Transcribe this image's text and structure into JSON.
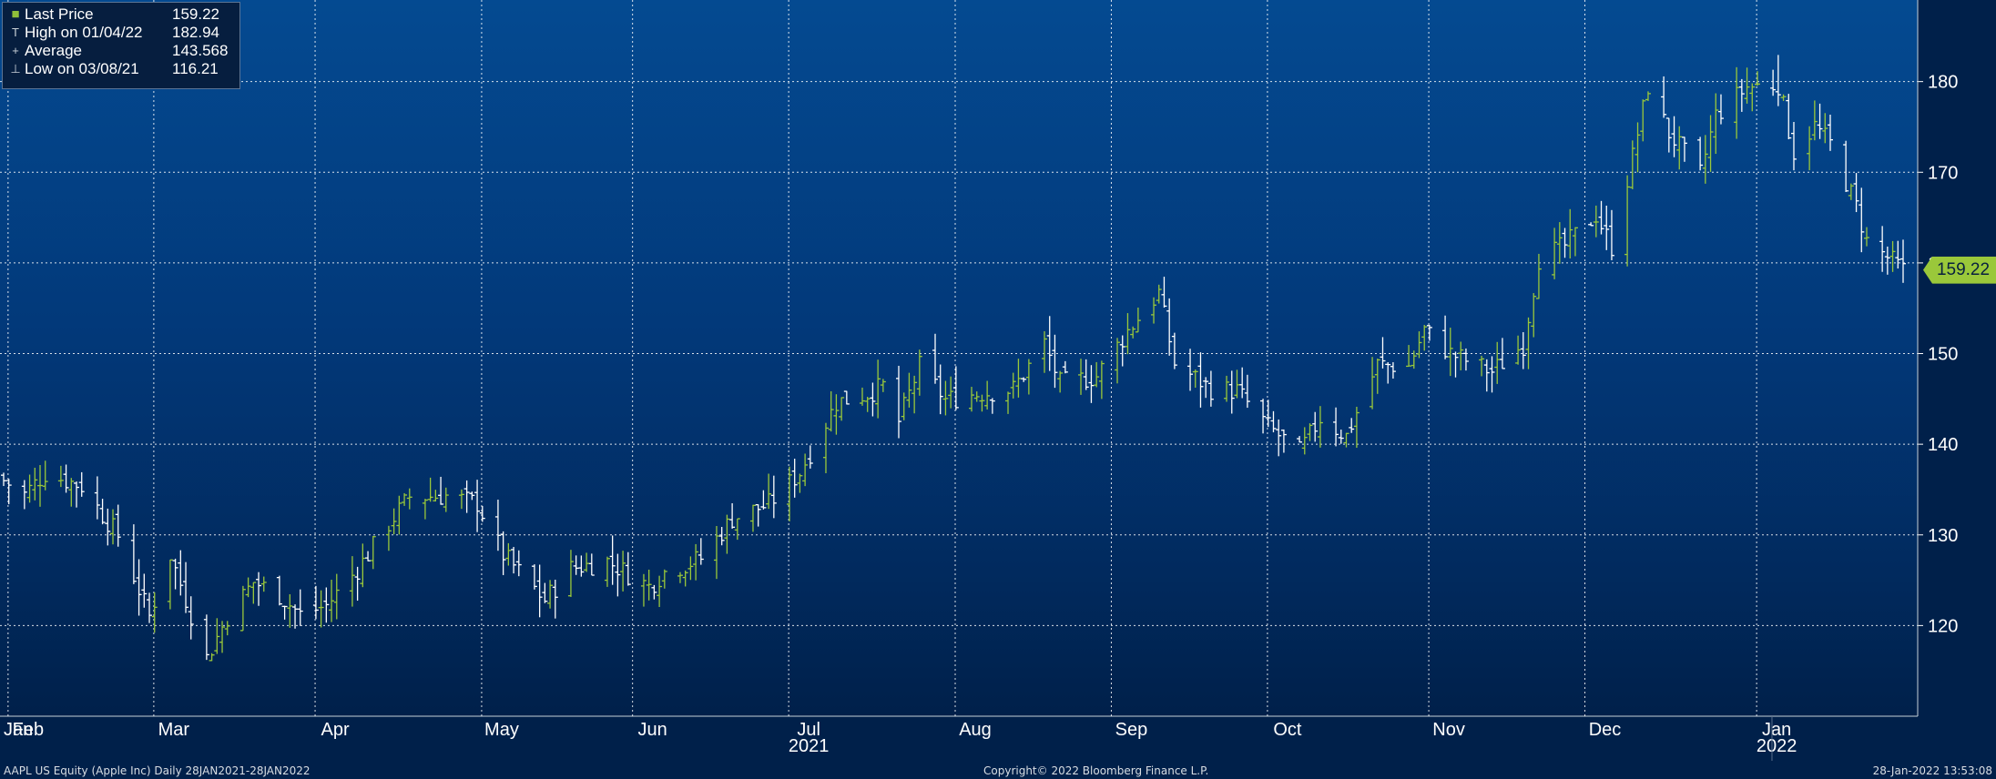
{
  "legend": {
    "items": [
      {
        "symbol": "■",
        "name": "Last Price",
        "value": "159.22"
      },
      {
        "symbol": "T",
        "name": "High on 01/04/22",
        "value": "182.94"
      },
      {
        "symbol": "+",
        "name": "Average",
        "value": "143.568"
      },
      {
        "symbol": "⊥",
        "name": "Low on 03/08/21",
        "value": "116.21"
      }
    ]
  },
  "last_price_label": "159.22",
  "footer": {
    "left": "AAPL US Equity (Apple Inc)  Daily 28JAN2021-28JAN2022",
    "center": "Copyright© 2022 Bloomberg Finance L.P.",
    "right": "28-Jan-2022 13:53:08"
  },
  "colors": {
    "up": "#9ac83a",
    "down": "#ffffff",
    "grid": "#ffffff",
    "last_price_box": "#9ac83a"
  },
  "chart_data": {
    "type": "bar",
    "subtype": "ohlc",
    "title": "",
    "xlabel": "",
    "ylabel": "",
    "ylim": [
      110,
      189
    ],
    "yticks": [
      120,
      130,
      140,
      150,
      160,
      170,
      180
    ],
    "year_labels": [
      {
        "label": "2021",
        "date": "2021-07-01"
      },
      {
        "label": "2022",
        "date": "2022-01-03"
      }
    ],
    "month_ticks": [
      {
        "label": "Jan",
        "date": "2021-01-28"
      },
      {
        "label": "Feb",
        "date": "2021-02-01"
      },
      {
        "label": "Mar",
        "date": "2021-03-01"
      },
      {
        "label": "Apr",
        "date": "2021-04-01"
      },
      {
        "label": "May",
        "date": "2021-05-03"
      },
      {
        "label": "Jun",
        "date": "2021-06-01"
      },
      {
        "label": "Jul",
        "date": "2021-07-01"
      },
      {
        "label": "Aug",
        "date": "2021-08-02"
      },
      {
        "label": "Sep",
        "date": "2021-09-01"
      },
      {
        "label": "Oct",
        "date": "2021-10-01"
      },
      {
        "label": "Nov",
        "date": "2021-11-01"
      },
      {
        "label": "Dec",
        "date": "2021-12-01"
      },
      {
        "label": "Jan",
        "date": "2022-01-03"
      }
    ],
    "last_price": 159.22,
    "high": {
      "date": "01/04/22",
      "value": 182.94
    },
    "low": {
      "date": "03/08/21",
      "value": 116.21
    },
    "average": 143.568,
    "grid": true,
    "legend_position": "top-left",
    "keypoints": [
      [
        "2021-01-28",
        136
      ],
      [
        "2021-02-01",
        134.5
      ],
      [
        "2021-02-05",
        136.8
      ],
      [
        "2021-02-12",
        135.4
      ],
      [
        "2021-02-19",
        129.9
      ],
      [
        "2021-02-25",
        121
      ],
      [
        "2021-03-01",
        127.8
      ],
      [
        "2021-03-08",
        116.4
      ],
      [
        "2021-03-12",
        121
      ],
      [
        "2021-03-17",
        124.8
      ],
      [
        "2021-03-22",
        123.4
      ],
      [
        "2021-03-26",
        121.2
      ],
      [
        "2021-03-31",
        122.2
      ],
      [
        "2021-04-06",
        126.2
      ],
      [
        "2021-04-12",
        131.2
      ],
      [
        "2021-04-16",
        134.2
      ],
      [
        "2021-04-23",
        134.3
      ],
      [
        "2021-04-29",
        133.5
      ],
      [
        "2021-05-04",
        127.8
      ],
      [
        "2021-05-12",
        122.8
      ],
      [
        "2021-05-17",
        126.3
      ],
      [
        "2021-05-24",
        127.1
      ],
      [
        "2021-06-01",
        124.3
      ],
      [
        "2021-06-04",
        125.9
      ],
      [
        "2021-06-11",
        127.4
      ],
      [
        "2021-06-17",
        131.8
      ],
      [
        "2021-06-24",
        133.4
      ],
      [
        "2021-06-30",
        136.9
      ],
      [
        "2021-07-07",
        144.6
      ],
      [
        "2021-07-13",
        145.6
      ],
      [
        "2021-07-16",
        146.4
      ],
      [
        "2021-07-19",
        142.5
      ],
      [
        "2021-07-23",
        148.6
      ],
      [
        "2021-07-28",
        144.9
      ],
      [
        "2021-08-02",
        145.5
      ],
      [
        "2021-08-10",
        146.1
      ],
      [
        "2021-08-16",
        151.1
      ],
      [
        "2021-08-19",
        146.7
      ],
      [
        "2021-08-26",
        147.5
      ],
      [
        "2021-09-01",
        152.5
      ],
      [
        "2021-09-07",
        156.7
      ],
      [
        "2021-09-10",
        148.9
      ],
      [
        "2021-09-17",
        146.1
      ],
      [
        "2021-09-22",
        145.9
      ],
      [
        "2021-09-28",
        141.9
      ],
      [
        "2021-10-04",
        139.1
      ],
      [
        "2021-10-08",
        142.9
      ],
      [
        "2021-10-13",
        140.9
      ],
      [
        "2021-10-19",
        148.8
      ],
      [
        "2021-10-25",
        148.6
      ],
      [
        "2021-10-28",
        152.6
      ],
      [
        "2021-11-02",
        150.0
      ],
      [
        "2021-11-10",
        148.0
      ],
      [
        "2021-11-16",
        151.0
      ],
      [
        "2021-11-19",
        160.5
      ],
      [
        "2021-11-24",
        161.9
      ],
      [
        "2021-11-30",
        165.3
      ],
      [
        "2021-12-03",
        161.8
      ],
      [
        "2021-12-07",
        171.7
      ],
      [
        "2021-12-10",
        179.5
      ],
      [
        "2021-12-14",
        174.3
      ],
      [
        "2021-12-20",
        169.8
      ],
      [
        "2021-12-23",
        176.3
      ],
      [
        "2021-12-29",
        179.4
      ],
      [
        "2022-01-04",
        179.7
      ],
      [
        "2022-01-07",
        172.2
      ],
      [
        "2022-01-11",
        175.1
      ],
      [
        "2022-01-14",
        173.1
      ],
      [
        "2022-01-19",
        166.2
      ],
      [
        "2022-01-21",
        162.4
      ],
      [
        "2022-01-25",
        160.6
      ],
      [
        "2022-01-28",
        159.2
      ]
    ]
  }
}
